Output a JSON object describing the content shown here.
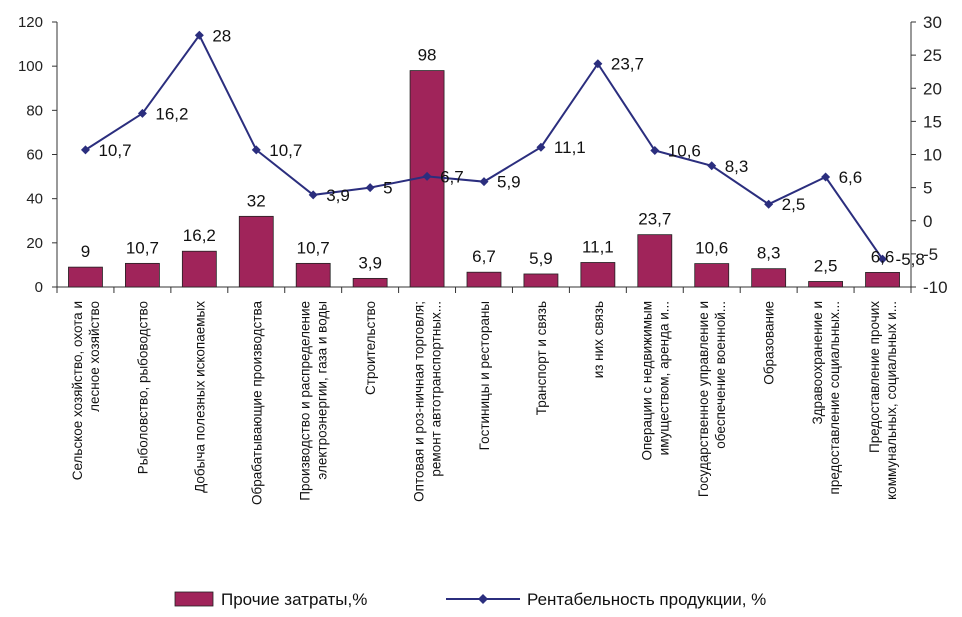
{
  "chart_data": {
    "type": "bar",
    "categories": [
      [
        "Сельское хозяйство, охота и",
        "лесное хозяйство"
      ],
      [
        "Рыболовство, рыбоводство"
      ],
      [
        "Добыча полезных ископаемых"
      ],
      [
        "Обрабатывающие производства"
      ],
      [
        "Производство и распределение",
        "электроэнергии, газа и воды"
      ],
      [
        "Строительство"
      ],
      [
        "Оптовая и роз-ничная торговля;",
        "ремонт автотранспортных..."
      ],
      [
        "Гостиницы и рестораны"
      ],
      [
        "Транспорт и связь"
      ],
      [
        "из них связь"
      ],
      [
        "Операции с недвижимым",
        "имуществом, аренда и..."
      ],
      [
        "Государственное управление и",
        "обеспечение военной..."
      ],
      [
        "Образование"
      ],
      [
        "Здравоохранение и",
        "предоставление социальных..."
      ],
      [
        "Предоставление прочих",
        "коммунальных, социальных и..."
      ]
    ],
    "series": [
      {
        "name": "Прочие затраты,%",
        "type": "bar",
        "axis": "left",
        "color": "#a0245a",
        "values": [
          9,
          10.7,
          16.2,
          32,
          10.7,
          3.9,
          98,
          6.7,
          5.9,
          11.1,
          23.7,
          10.6,
          8.3,
          2.5,
          6.6
        ],
        "labels": [
          "9",
          "10,7",
          "16,2",
          "32",
          "10,7",
          "3,9",
          "98",
          "6,7",
          "5,9",
          "11,1",
          "23,7",
          "10,6",
          "8,3",
          "2,5",
          "6,6"
        ]
      },
      {
        "name": "Рентабельность продукции, %",
        "type": "line",
        "axis": "right",
        "color": "#2b2e7e",
        "values": [
          10.7,
          16.2,
          28,
          10.7,
          3.9,
          5,
          6.7,
          5.9,
          11.1,
          23.7,
          10.6,
          8.3,
          2.5,
          6.6,
          -5.8
        ],
        "labels": [
          "10,7",
          "16,2",
          "28",
          "10,7",
          "3,9",
          "5",
          "6,7",
          "5,9",
          "11,1",
          "23,7",
          "10,6",
          "8,3",
          "2,5",
          "6,6",
          "-5,8"
        ]
      }
    ],
    "y_left": {
      "ylim": [
        0,
        120
      ],
      "ticks": [
        "0",
        "20",
        "40",
        "60",
        "80",
        "100",
        "120"
      ]
    },
    "y_right": {
      "ylim": [
        -10,
        30
      ],
      "ticks": [
        "-10",
        "-5",
        "0",
        "5",
        "10",
        "15",
        "20",
        "25",
        "30"
      ]
    },
    "legend_position": "bottom",
    "grid": false
  }
}
